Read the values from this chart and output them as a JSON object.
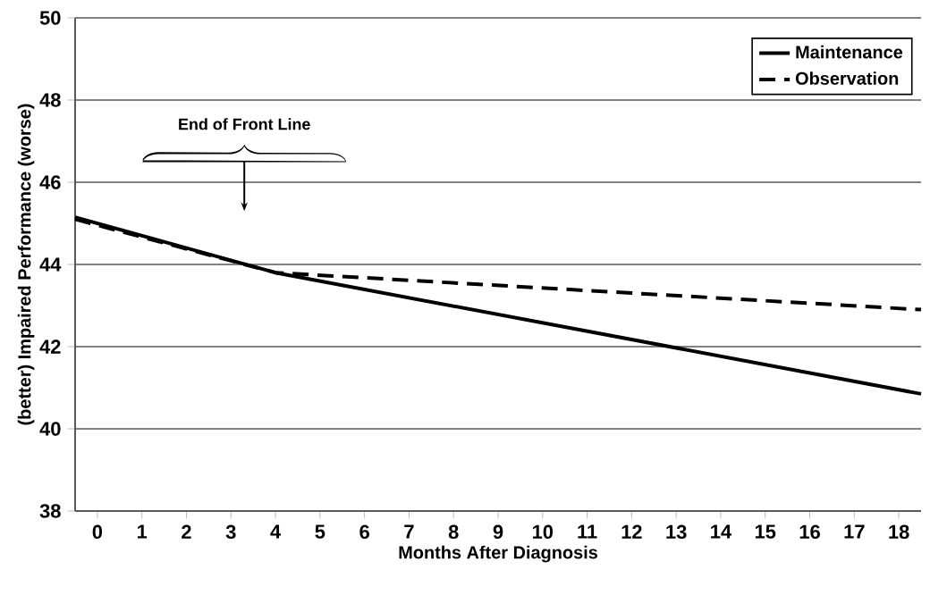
{
  "chart_data": {
    "type": "line",
    "xlabel": "Months After Diagnosis",
    "ylabel": "(better)  Impaired Performance  (worse)",
    "xlim": [
      -0.5,
      18.5
    ],
    "xticks": [
      0,
      1,
      2,
      3,
      4,
      5,
      6,
      7,
      8,
      9,
      10,
      11,
      12,
      13,
      14,
      15,
      16,
      17,
      18
    ],
    "ylim": [
      38,
      50
    ],
    "yticks": [
      38,
      40,
      42,
      44,
      46,
      48,
      50
    ],
    "grid": "y",
    "legend": "top right",
    "marker": "none",
    "series": [
      {
        "name": "Maintenance",
        "color": "#000000",
        "line_style": "solid",
        "x": [
          -0.5,
          4,
          18.5
        ],
        "values": [
          45.15,
          43.8,
          40.85
        ]
      },
      {
        "name": "Observation",
        "color": "#000000",
        "line_style": "dashed",
        "x": [
          -0.5,
          4,
          18.5
        ],
        "values": [
          45.1,
          43.8,
          42.9
        ]
      }
    ],
    "annotations": [
      "End of Front Line"
    ]
  }
}
